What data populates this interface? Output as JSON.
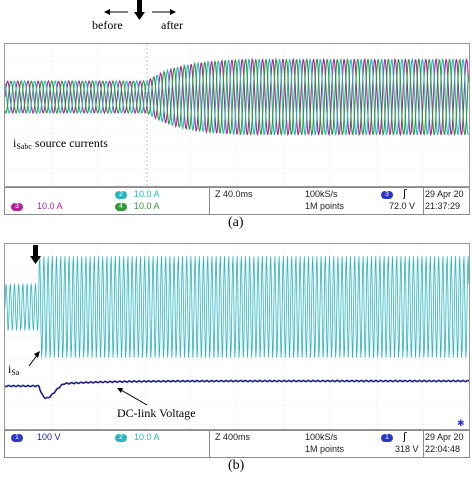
{
  "panel_a": {
    "annotations": {
      "before": "before",
      "after": "after",
      "currents_main": "i",
      "currents_sub": "Sabc",
      "currents_rest": " source currents"
    },
    "status": {
      "ch3_badge": "3",
      "ch3_value": "10.0 A",
      "ch2_badge": "2",
      "ch2_value": "10.0 A",
      "ch4_badge": "4",
      "ch4_value": "10.0 A",
      "timebase": "Z 40.0ms",
      "sample_rate": "100kS/s",
      "record_length": "1M points",
      "trig_badge": "3",
      "trig_level": "72.0 V",
      "date": "29 Apr 20",
      "time": "21:37:29"
    },
    "caption": "(a)"
  },
  "panel_b": {
    "annotations": {
      "current_main": "i",
      "current_sub": "Sa",
      "dc_link": "DC-link Voltage"
    },
    "status": {
      "ch1_badge": "1",
      "ch1_value": "100 V",
      "ch2_badge": "2",
      "ch2_value": "10.0 A",
      "timebase": "Z 400ms",
      "sample_rate": "100kS/s",
      "record_length": "1M points",
      "trig_badge": "1",
      "trig_level": "318 V",
      "date": "29 Apr 20",
      "time": "22:04:48"
    },
    "caption": "(b)"
  },
  "colors": {
    "magenta": "#b0229a",
    "cyan": "#29b5c0",
    "green": "#2f9a3c",
    "navy": "#1a1f8c",
    "blue_badge": "#2a36c8"
  },
  "icons": [
    "down-arrow-icon",
    "left-arrow-icon",
    "right-arrow-icon",
    "trigger-slope-icon",
    "pointer-arrow-icon"
  ]
}
